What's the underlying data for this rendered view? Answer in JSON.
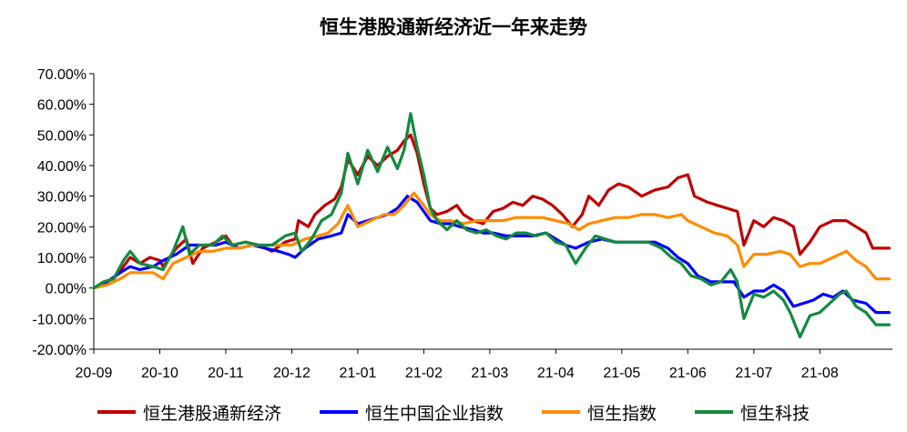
{
  "chart_data": {
    "type": "line",
    "title": "恒生港股通新经济近一年来走势",
    "xlabel": "",
    "ylabel": "",
    "ylim": [
      -0.2,
      0.7
    ],
    "y_ticks": [
      0.7,
      0.6,
      0.5,
      0.4,
      0.3,
      0.2,
      0.1,
      0.0,
      -0.1,
      -0.2
    ],
    "y_tick_labels": [
      "70.00%",
      "60.00%",
      "50.00%",
      "40.00%",
      "30.00%",
      "20.00%",
      "10.00%",
      "0.00%",
      "-10.00%",
      "-20.00%"
    ],
    "x_tick_labels": [
      "20-09",
      "20-10",
      "20-11",
      "20-12",
      "21-01",
      "21-02",
      "21-03",
      "21-04",
      "21-05",
      "21-06",
      "21-07",
      "21-08"
    ],
    "x_range": [
      0,
      12.1
    ],
    "grid": false,
    "legend_position": "bottom",
    "series": [
      {
        "name": "恒生港股通新经济",
        "color": "#C00000",
        "points": [
          [
            0,
            0
          ],
          [
            0.15,
            0.02
          ],
          [
            0.3,
            0.03
          ],
          [
            0.45,
            0.07
          ],
          [
            0.55,
            0.1
          ],
          [
            0.7,
            0.08
          ],
          [
            0.85,
            0.1
          ],
          [
            1.0,
            0.09
          ],
          [
            1.05,
            0.07
          ],
          [
            1.25,
            0.13
          ],
          [
            1.4,
            0.16
          ],
          [
            1.5,
            0.08
          ],
          [
            1.65,
            0.13
          ],
          [
            1.85,
            0.15
          ],
          [
            2.0,
            0.17
          ],
          [
            2.1,
            0.14
          ],
          [
            2.3,
            0.15
          ],
          [
            2.5,
            0.14
          ],
          [
            2.7,
            0.12
          ],
          [
            2.9,
            0.15
          ],
          [
            3.05,
            0.16
          ],
          [
            3.1,
            0.22
          ],
          [
            3.25,
            0.2
          ],
          [
            3.35,
            0.24
          ],
          [
            3.5,
            0.27
          ],
          [
            3.65,
            0.29
          ],
          [
            3.75,
            0.33
          ],
          [
            3.85,
            0.42
          ],
          [
            4.0,
            0.37
          ],
          [
            4.15,
            0.43
          ],
          [
            4.3,
            0.4
          ],
          [
            4.45,
            0.43
          ],
          [
            4.6,
            0.45
          ],
          [
            4.7,
            0.48
          ],
          [
            4.8,
            0.5
          ],
          [
            4.9,
            0.44
          ],
          [
            5.0,
            0.34
          ],
          [
            5.1,
            0.26
          ],
          [
            5.2,
            0.24
          ],
          [
            5.35,
            0.25
          ],
          [
            5.5,
            0.27
          ],
          [
            5.6,
            0.24
          ],
          [
            5.75,
            0.22
          ],
          [
            5.9,
            0.21
          ],
          [
            6.05,
            0.25
          ],
          [
            6.2,
            0.26
          ],
          [
            6.35,
            0.28
          ],
          [
            6.5,
            0.27
          ],
          [
            6.65,
            0.3
          ],
          [
            6.8,
            0.29
          ],
          [
            6.95,
            0.27
          ],
          [
            7.1,
            0.24
          ],
          [
            7.25,
            0.2
          ],
          [
            7.4,
            0.24
          ],
          [
            7.5,
            0.3
          ],
          [
            7.65,
            0.27
          ],
          [
            7.8,
            0.32
          ],
          [
            7.95,
            0.34
          ],
          [
            8.1,
            0.33
          ],
          [
            8.3,
            0.3
          ],
          [
            8.5,
            0.32
          ],
          [
            8.7,
            0.33
          ],
          [
            8.85,
            0.36
          ],
          [
            9.0,
            0.37
          ],
          [
            9.1,
            0.3
          ],
          [
            9.3,
            0.28
          ],
          [
            9.45,
            0.27
          ],
          [
            9.6,
            0.26
          ],
          [
            9.75,
            0.25
          ],
          [
            9.85,
            0.14
          ],
          [
            10.0,
            0.22
          ],
          [
            10.15,
            0.2
          ],
          [
            10.3,
            0.23
          ],
          [
            10.45,
            0.22
          ],
          [
            10.6,
            0.2
          ],
          [
            10.7,
            0.11
          ],
          [
            10.85,
            0.15
          ],
          [
            11.0,
            0.2
          ],
          [
            11.2,
            0.22
          ],
          [
            11.4,
            0.22
          ],
          [
            11.55,
            0.2
          ],
          [
            11.7,
            0.18
          ],
          [
            11.8,
            0.13
          ],
          [
            11.95,
            0.13
          ],
          [
            12.05,
            0.13
          ]
        ]
      },
      {
        "name": "恒生中国企业指数",
        "color": "#0000FF",
        "points": [
          [
            0,
            0
          ],
          [
            0.2,
            0.02
          ],
          [
            0.4,
            0.05
          ],
          [
            0.55,
            0.07
          ],
          [
            0.7,
            0.06
          ],
          [
            0.9,
            0.07
          ],
          [
            1.05,
            0.09
          ],
          [
            1.25,
            0.11
          ],
          [
            1.45,
            0.14
          ],
          [
            1.65,
            0.14
          ],
          [
            1.85,
            0.14
          ],
          [
            2.0,
            0.15
          ],
          [
            2.2,
            0.13
          ],
          [
            2.4,
            0.14
          ],
          [
            2.6,
            0.13
          ],
          [
            2.8,
            0.12
          ],
          [
            2.95,
            0.11
          ],
          [
            3.05,
            0.1
          ],
          [
            3.2,
            0.13
          ],
          [
            3.4,
            0.16
          ],
          [
            3.6,
            0.17
          ],
          [
            3.75,
            0.18
          ],
          [
            3.85,
            0.24
          ],
          [
            4.0,
            0.21
          ],
          [
            4.15,
            0.22
          ],
          [
            4.3,
            0.23
          ],
          [
            4.45,
            0.24
          ],
          [
            4.6,
            0.26
          ],
          [
            4.75,
            0.3
          ],
          [
            4.9,
            0.28
          ],
          [
            5.0,
            0.25
          ],
          [
            5.1,
            0.22
          ],
          [
            5.25,
            0.21
          ],
          [
            5.4,
            0.21
          ],
          [
            5.55,
            0.2
          ],
          [
            5.75,
            0.19
          ],
          [
            5.9,
            0.18
          ],
          [
            6.05,
            0.18
          ],
          [
            6.25,
            0.17
          ],
          [
            6.45,
            0.17
          ],
          [
            6.65,
            0.17
          ],
          [
            6.85,
            0.18
          ],
          [
            7.0,
            0.16
          ],
          [
            7.15,
            0.14
          ],
          [
            7.3,
            0.13
          ],
          [
            7.5,
            0.15
          ],
          [
            7.7,
            0.16
          ],
          [
            7.9,
            0.15
          ],
          [
            8.1,
            0.15
          ],
          [
            8.3,
            0.15
          ],
          [
            8.5,
            0.15
          ],
          [
            8.7,
            0.13
          ],
          [
            8.85,
            0.1
          ],
          [
            9.0,
            0.08
          ],
          [
            9.15,
            0.04
          ],
          [
            9.35,
            0.02
          ],
          [
            9.55,
            0.02
          ],
          [
            9.7,
            0.02
          ],
          [
            9.85,
            -0.03
          ],
          [
            10.0,
            -0.01
          ],
          [
            10.15,
            -0.01
          ],
          [
            10.3,
            0.01
          ],
          [
            10.45,
            -0.01
          ],
          [
            10.6,
            -0.06
          ],
          [
            10.75,
            -0.05
          ],
          [
            10.9,
            -0.04
          ],
          [
            11.05,
            -0.02
          ],
          [
            11.2,
            -0.03
          ],
          [
            11.35,
            -0.01
          ],
          [
            11.5,
            -0.04
          ],
          [
            11.7,
            -0.05
          ],
          [
            11.85,
            -0.08
          ],
          [
            12.05,
            -0.08
          ]
        ]
      },
      {
        "name": "恒生指数",
        "color": "#FF8C00",
        "points": [
          [
            0,
            0
          ],
          [
            0.2,
            0.01
          ],
          [
            0.4,
            0.03
          ],
          [
            0.55,
            0.05
          ],
          [
            0.7,
            0.05
          ],
          [
            0.9,
            0.05
          ],
          [
            1.05,
            0.03
          ],
          [
            1.2,
            0.08
          ],
          [
            1.4,
            0.1
          ],
          [
            1.6,
            0.12
          ],
          [
            1.8,
            0.12
          ],
          [
            2.0,
            0.13
          ],
          [
            2.2,
            0.13
          ],
          [
            2.4,
            0.14
          ],
          [
            2.6,
            0.14
          ],
          [
            2.8,
            0.14
          ],
          [
            3.0,
            0.14
          ],
          [
            3.2,
            0.16
          ],
          [
            3.4,
            0.17
          ],
          [
            3.55,
            0.18
          ],
          [
            3.7,
            0.21
          ],
          [
            3.85,
            0.27
          ],
          [
            4.0,
            0.2
          ],
          [
            4.2,
            0.22
          ],
          [
            4.4,
            0.24
          ],
          [
            4.55,
            0.24
          ],
          [
            4.7,
            0.27
          ],
          [
            4.85,
            0.31
          ],
          [
            5.0,
            0.27
          ],
          [
            5.1,
            0.24
          ],
          [
            5.25,
            0.22
          ],
          [
            5.4,
            0.22
          ],
          [
            5.6,
            0.21
          ],
          [
            5.8,
            0.22
          ],
          [
            6.0,
            0.22
          ],
          [
            6.2,
            0.22
          ],
          [
            6.4,
            0.23
          ],
          [
            6.6,
            0.23
          ],
          [
            6.8,
            0.23
          ],
          [
            7.0,
            0.22
          ],
          [
            7.2,
            0.21
          ],
          [
            7.35,
            0.19
          ],
          [
            7.5,
            0.21
          ],
          [
            7.7,
            0.22
          ],
          [
            7.9,
            0.23
          ],
          [
            8.1,
            0.23
          ],
          [
            8.3,
            0.24
          ],
          [
            8.5,
            0.24
          ],
          [
            8.7,
            0.23
          ],
          [
            8.9,
            0.24
          ],
          [
            9.0,
            0.22
          ],
          [
            9.2,
            0.2
          ],
          [
            9.4,
            0.18
          ],
          [
            9.6,
            0.17
          ],
          [
            9.75,
            0.14
          ],
          [
            9.85,
            0.07
          ],
          [
            10.0,
            0.11
          ],
          [
            10.2,
            0.11
          ],
          [
            10.4,
            0.12
          ],
          [
            10.55,
            0.11
          ],
          [
            10.7,
            0.07
          ],
          [
            10.85,
            0.08
          ],
          [
            11.0,
            0.08
          ],
          [
            11.2,
            0.1
          ],
          [
            11.4,
            0.12
          ],
          [
            11.55,
            0.09
          ],
          [
            11.7,
            0.07
          ],
          [
            11.85,
            0.03
          ],
          [
            12.05,
            0.03
          ]
        ]
      },
      {
        "name": "恒生科技",
        "color": "#138A3E",
        "points": [
          [
            0,
            0
          ],
          [
            0.15,
            0.02
          ],
          [
            0.3,
            0.03
          ],
          [
            0.45,
            0.09
          ],
          [
            0.55,
            0.12
          ],
          [
            0.7,
            0.08
          ],
          [
            0.9,
            0.07
          ],
          [
            1.05,
            0.06
          ],
          [
            1.2,
            0.12
          ],
          [
            1.35,
            0.2
          ],
          [
            1.45,
            0.11
          ],
          [
            1.6,
            0.14
          ],
          [
            1.8,
            0.14
          ],
          [
            1.95,
            0.17
          ],
          [
            2.1,
            0.14
          ],
          [
            2.3,
            0.15
          ],
          [
            2.5,
            0.14
          ],
          [
            2.7,
            0.14
          ],
          [
            2.9,
            0.17
          ],
          [
            3.05,
            0.18
          ],
          [
            3.15,
            0.12
          ],
          [
            3.3,
            0.16
          ],
          [
            3.45,
            0.22
          ],
          [
            3.6,
            0.24
          ],
          [
            3.75,
            0.31
          ],
          [
            3.85,
            0.44
          ],
          [
            4.0,
            0.34
          ],
          [
            4.15,
            0.45
          ],
          [
            4.3,
            0.38
          ],
          [
            4.45,
            0.46
          ],
          [
            4.6,
            0.39
          ],
          [
            4.7,
            0.45
          ],
          [
            4.8,
            0.57
          ],
          [
            4.9,
            0.46
          ],
          [
            5.0,
            0.37
          ],
          [
            5.1,
            0.26
          ],
          [
            5.2,
            0.22
          ],
          [
            5.35,
            0.19
          ],
          [
            5.5,
            0.22
          ],
          [
            5.65,
            0.19
          ],
          [
            5.8,
            0.18
          ],
          [
            5.95,
            0.19
          ],
          [
            6.1,
            0.17
          ],
          [
            6.25,
            0.16
          ],
          [
            6.4,
            0.18
          ],
          [
            6.55,
            0.18
          ],
          [
            6.7,
            0.17
          ],
          [
            6.85,
            0.18
          ],
          [
            7.0,
            0.15
          ],
          [
            7.15,
            0.14
          ],
          [
            7.3,
            0.08
          ],
          [
            7.45,
            0.13
          ],
          [
            7.6,
            0.17
          ],
          [
            7.75,
            0.16
          ],
          [
            7.9,
            0.15
          ],
          [
            8.05,
            0.15
          ],
          [
            8.2,
            0.15
          ],
          [
            8.4,
            0.15
          ],
          [
            8.6,
            0.13
          ],
          [
            8.75,
            0.1
          ],
          [
            8.9,
            0.08
          ],
          [
            9.05,
            0.04
          ],
          [
            9.2,
            0.03
          ],
          [
            9.35,
            0.01
          ],
          [
            9.5,
            0.02
          ],
          [
            9.65,
            0.06
          ],
          [
            9.75,
            0.02
          ],
          [
            9.85,
            -0.1
          ],
          [
            10.0,
            -0.02
          ],
          [
            10.15,
            -0.03
          ],
          [
            10.3,
            -0.01
          ],
          [
            10.45,
            -0.04
          ],
          [
            10.55,
            -0.08
          ],
          [
            10.7,
            -0.16
          ],
          [
            10.85,
            -0.09
          ],
          [
            11.0,
            -0.08
          ],
          [
            11.15,
            -0.05
          ],
          [
            11.3,
            -0.02
          ],
          [
            11.4,
            -0.01
          ],
          [
            11.55,
            -0.06
          ],
          [
            11.7,
            -0.08
          ],
          [
            11.85,
            -0.12
          ],
          [
            12.05,
            -0.12
          ]
        ]
      }
    ]
  }
}
